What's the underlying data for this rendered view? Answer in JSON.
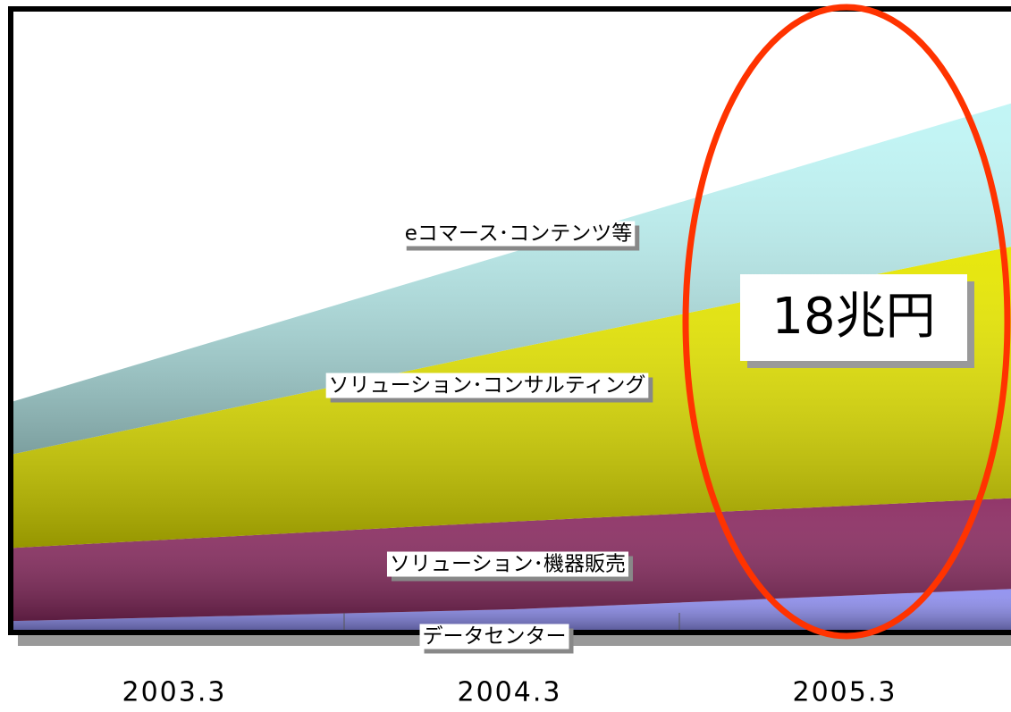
{
  "chart_data": {
    "type": "area",
    "categories": [
      "2003.3",
      "2004.3",
      "2005.3"
    ],
    "series": [
      {
        "name": "データセンター",
        "color": "#8f8ff0",
        "values": [
          0.3,
          0.7,
          1.4
        ]
      },
      {
        "name": "ソリューション･機器販売",
        "color": "#8c2c62",
        "values": [
          2.5,
          3.0,
          3.1
        ]
      },
      {
        "name": "ソリューション･コンサルティング",
        "color": "#e6e600",
        "values": [
          3.2,
          5.9,
          8.6
        ]
      },
      {
        "name": "eコマース･コンテンツ等",
        "color": "#bff5f5",
        "values": [
          1.8,
          3.3,
          4.9
        ]
      }
    ],
    "ylim": [
      0,
      21.2
    ],
    "annotation": "18兆円"
  }
}
